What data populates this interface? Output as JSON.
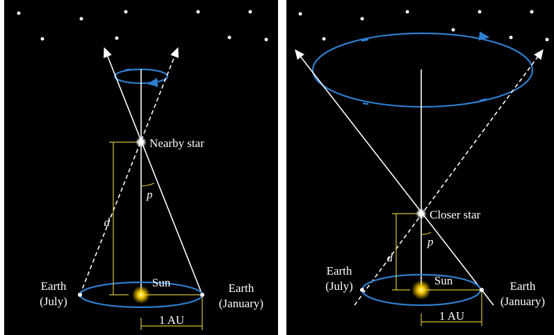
{
  "panels": [
    {
      "star_label": "Nearby star",
      "angle_label": "p",
      "distance_label": "d",
      "earth_left": [
        "Earth",
        "(July)"
      ],
      "sun_label": "Sun",
      "earth_right": [
        "Earth",
        "(January)"
      ],
      "baseline_label": "1 AU"
    },
    {
      "star_label": "Closer star",
      "angle_label": "p",
      "distance_label": "d",
      "earth_left": [
        "Earth",
        "(July)"
      ],
      "sun_label": "Sun",
      "earth_right": [
        "Earth",
        "(January)"
      ],
      "baseline_label": "1 AU"
    }
  ]
}
